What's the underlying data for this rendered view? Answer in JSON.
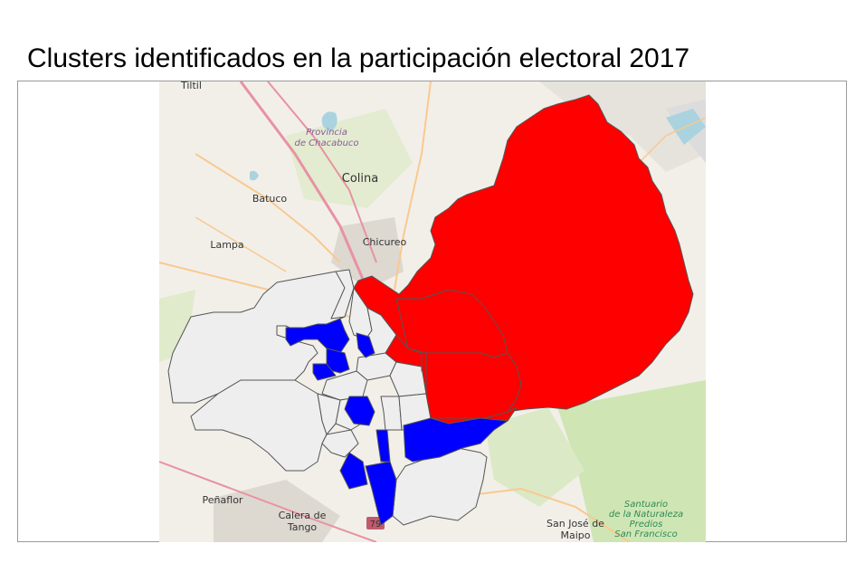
{
  "title": "Clusters identificados en la participación electoral 2017",
  "colors": {
    "cluster_high": "#ff0000",
    "cluster_low": "#0000ff",
    "cluster_none": "#eeeeee",
    "border": "#555555",
    "basemap_land": "#f2efe9",
    "basemap_green": "#cfe6b4",
    "road_major": "#e892a2",
    "road_secondary": "#f9c98f"
  },
  "place_labels": {
    "tiltil": "Tiltil",
    "provincia": "Provincia",
    "chacabuco": "de Chacabuco",
    "colina": "Colina",
    "batuco": "Batuco",
    "chicureo": "Chicureo",
    "lampa": "Lampa",
    "penaflor": "Peñaflor",
    "calera": "Calera de",
    "tango": "Tango",
    "sanjose": "San José de",
    "maipo": "Maipo",
    "santuario1": "Santuario",
    "santuario2": "de la Naturaleza",
    "santuario3": "Predios",
    "santuario4": "San Francisco",
    "route": "79"
  }
}
